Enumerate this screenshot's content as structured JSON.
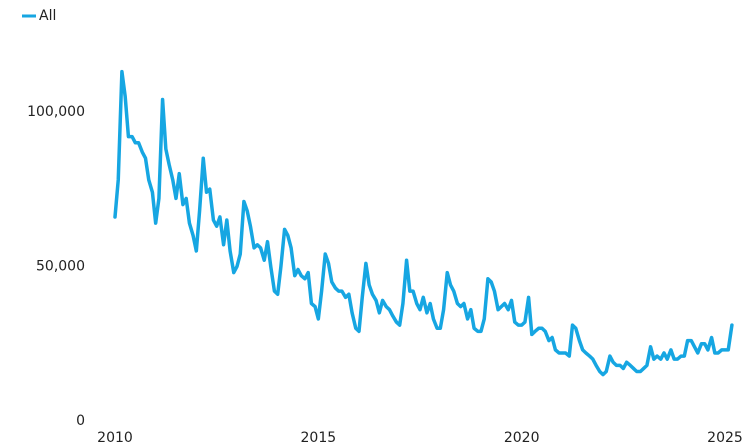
{
  "chart_data": {
    "type": "line",
    "x": [
      2010,
      2010.08,
      2010.17,
      2010.25,
      2010.33,
      2010.42,
      2010.5,
      2010.58,
      2010.67,
      2010.75,
      2010.83,
      2010.92,
      2011,
      2011.08,
      2011.17,
      2011.25,
      2011.33,
      2011.42,
      2011.5,
      2011.58,
      2011.67,
      2011.75,
      2011.83,
      2011.92,
      2012,
      2012.08,
      2012.17,
      2012.25,
      2012.33,
      2012.42,
      2012.5,
      2012.58,
      2012.67,
      2012.75,
      2012.83,
      2012.92,
      2013,
      2013.08,
      2013.17,
      2013.25,
      2013.33,
      2013.42,
      2013.5,
      2013.58,
      2013.67,
      2013.75,
      2013.83,
      2013.92,
      2014,
      2014.08,
      2014.17,
      2014.25,
      2014.33,
      2014.42,
      2014.5,
      2014.58,
      2014.67,
      2014.75,
      2014.83,
      2014.92,
      2015,
      2015.08,
      2015.17,
      2015.25,
      2015.33,
      2015.42,
      2015.5,
      2015.58,
      2015.67,
      2015.75,
      2015.83,
      2015.92,
      2016,
      2016.08,
      2016.17,
      2016.25,
      2016.33,
      2016.42,
      2016.5,
      2016.58,
      2016.67,
      2016.75,
      2016.83,
      2016.92,
      2017,
      2017.08,
      2017.17,
      2017.25,
      2017.33,
      2017.42,
      2017.5,
      2017.58,
      2017.67,
      2017.75,
      2017.83,
      2017.92,
      2018,
      2018.08,
      2018.17,
      2018.25,
      2018.33,
      2018.42,
      2018.5,
      2018.58,
      2018.67,
      2018.75,
      2018.83,
      2018.92,
      2019,
      2019.08,
      2019.17,
      2019.25,
      2019.33,
      2019.42,
      2019.5,
      2019.58,
      2019.67,
      2019.75,
      2019.83,
      2019.92,
      2020,
      2020.08,
      2020.17,
      2020.25,
      2020.33,
      2020.42,
      2020.5,
      2020.58,
      2020.67,
      2020.75,
      2020.83,
      2020.92,
      2021,
      2021.08,
      2021.17,
      2021.25,
      2021.33,
      2021.42,
      2021.5,
      2021.58,
      2021.67,
      2021.75,
      2021.83,
      2021.92,
      2022,
      2022.08,
      2022.17,
      2022.25,
      2022.33,
      2022.42,
      2022.5,
      2022.58,
      2022.67,
      2022.75,
      2022.83,
      2022.92,
      2023,
      2023.08,
      2023.17,
      2023.25,
      2023.33,
      2023.42,
      2023.5,
      2023.58,
      2023.67,
      2023.75,
      2023.83,
      2023.92,
      2024,
      2024.08,
      2024.17,
      2024.25,
      2024.33,
      2024.42,
      2024.5,
      2024.58,
      2024.67,
      2024.75,
      2024.83,
      2024.92,
      2025,
      2025.08,
      2025.17
    ],
    "series": [
      {
        "name": "All",
        "color": "#16a6e2",
        "values": [
          66000,
          78000,
          113000,
          105000,
          92000,
          92000,
          90000,
          90000,
          87000,
          85000,
          78000,
          74000,
          64000,
          72000,
          104000,
          88000,
          83000,
          78000,
          72000,
          80000,
          70000,
          72000,
          64000,
          60000,
          55000,
          68000,
          85000,
          74000,
          75000,
          65000,
          63000,
          66000,
          57000,
          65000,
          55000,
          48000,
          50000,
          54000,
          71000,
          68000,
          63000,
          56000,
          57000,
          56000,
          52000,
          58000,
          50000,
          42000,
          41000,
          50000,
          62000,
          60000,
          56000,
          47000,
          49000,
          47000,
          46000,
          48000,
          38000,
          37000,
          33000,
          42000,
          54000,
          51000,
          45000,
          43000,
          42000,
          42000,
          40000,
          41000,
          35000,
          30000,
          29000,
          40000,
          51000,
          44000,
          41000,
          39000,
          35000,
          39000,
          37000,
          36000,
          34000,
          32000,
          31000,
          38000,
          52000,
          42000,
          42000,
          38000,
          36000,
          40000,
          35000,
          38000,
          33000,
          30000,
          30000,
          36000,
          48000,
          44000,
          42000,
          38000,
          37000,
          38000,
          33000,
          36000,
          30000,
          29000,
          29000,
          33000,
          46000,
          45000,
          42000,
          36000,
          37000,
          38000,
          36000,
          39000,
          32000,
          31000,
          31000,
          32000,
          40000,
          28000,
          29000,
          30000,
          30000,
          29000,
          26000,
          27000,
          23000,
          22000,
          22000,
          22000,
          21000,
          31000,
          30000,
          26000,
          23000,
          22000,
          21000,
          20000,
          18000,
          16000,
          15000,
          16000,
          21000,
          19000,
          18000,
          18000,
          17000,
          19000,
          18000,
          17000,
          16000,
          16000,
          17000,
          18000,
          24000,
          20000,
          21000,
          20000,
          22000,
          20000,
          23000,
          20000,
          20000,
          21000,
          21000,
          26000,
          26000,
          24000,
          22000,
          25000,
          25000,
          23000,
          27000,
          22000,
          22000,
          23000,
          23000,
          23000,
          31000
        ]
      }
    ],
    "xlim": [
      2010,
      2025
    ],
    "xticks": [
      2010,
      2015,
      2020,
      2025
    ],
    "ylim": [
      0,
      120000
    ],
    "yticks": [
      0,
      {
        "value": 50000,
        "label": "50,000"
      },
      {
        "value": 100000,
        "label": "100,000"
      }
    ],
    "legend": "top-left"
  }
}
